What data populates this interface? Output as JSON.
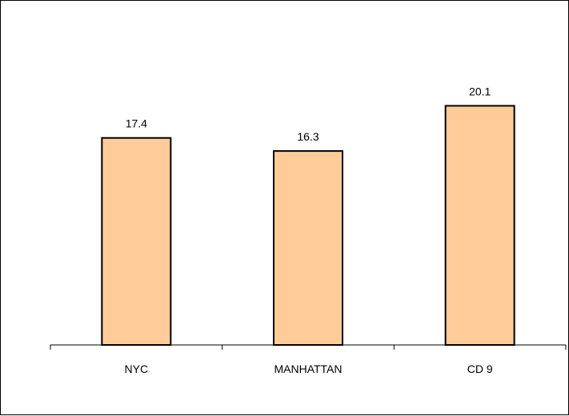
{
  "chart_data": {
    "type": "bar",
    "categories": [
      "NYC",
      "MANHATTAN",
      "CD 9"
    ],
    "values": [
      17.4,
      16.3,
      20.1
    ],
    "data_labels": [
      "17.4",
      "16.3",
      "20.1"
    ],
    "title": "",
    "xlabel": "",
    "ylabel": "",
    "ylim": [
      0,
      24
    ],
    "grid": false,
    "legend": "none",
    "bar_color": "#FFCC99",
    "bar_border_color": "#000000"
  }
}
